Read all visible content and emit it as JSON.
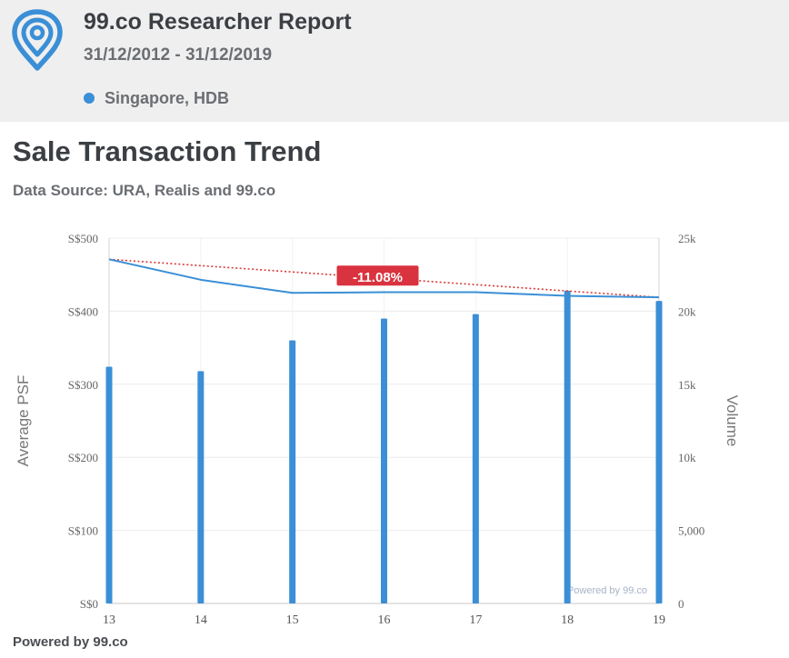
{
  "header": {
    "logo_icon": "map-pin-logo-icon",
    "title": "99.co Researcher Report",
    "dates": "31/12/2012 - 31/12/2019",
    "legend_label": "Singapore, HDB",
    "accent": "#3a8fd6"
  },
  "section": {
    "title": "Sale Transaction Trend",
    "source": "Data Source: URA, Realis and 99.co"
  },
  "footer": {
    "label": "Powered by 99.co"
  },
  "chart_data": {
    "type": "bar",
    "x": [
      "13",
      "14",
      "15",
      "16",
      "17",
      "18",
      "19"
    ],
    "ylabel": "Average PSF",
    "y2label": "Volume",
    "ylim": [
      0,
      500
    ],
    "y2lim": [
      0,
      25000
    ],
    "y_ticks": [
      "S$0",
      "S$100",
      "S$200",
      "S$300",
      "S$400",
      "S$500"
    ],
    "y_tick_values": [
      0,
      100,
      200,
      300,
      400,
      500
    ],
    "y2_ticks": [
      "0",
      "5,000",
      "10k",
      "15k",
      "20k",
      "25k"
    ],
    "y2_tick_values": [
      0,
      5000,
      10000,
      15000,
      20000,
      25000
    ],
    "grid": true,
    "series": [
      {
        "type": "bar",
        "axis": "right",
        "color": "#3a8fd6",
        "values": [
          16200,
          15900,
          18000,
          19500,
          19800,
          21400,
          20700
        ]
      },
      {
        "type": "line",
        "axis": "left",
        "color": "#3a8fd6",
        "values": [
          471,
          443,
          425,
          426,
          426,
          421,
          419
        ]
      }
    ],
    "trendline": {
      "color": "#d83a3a",
      "from": [
        0,
        471
      ],
      "to": [
        6,
        419
      ]
    },
    "annotation": {
      "text": "-11.08%",
      "color": "#d9333f"
    },
    "watermark": "Powered by 99.co"
  }
}
